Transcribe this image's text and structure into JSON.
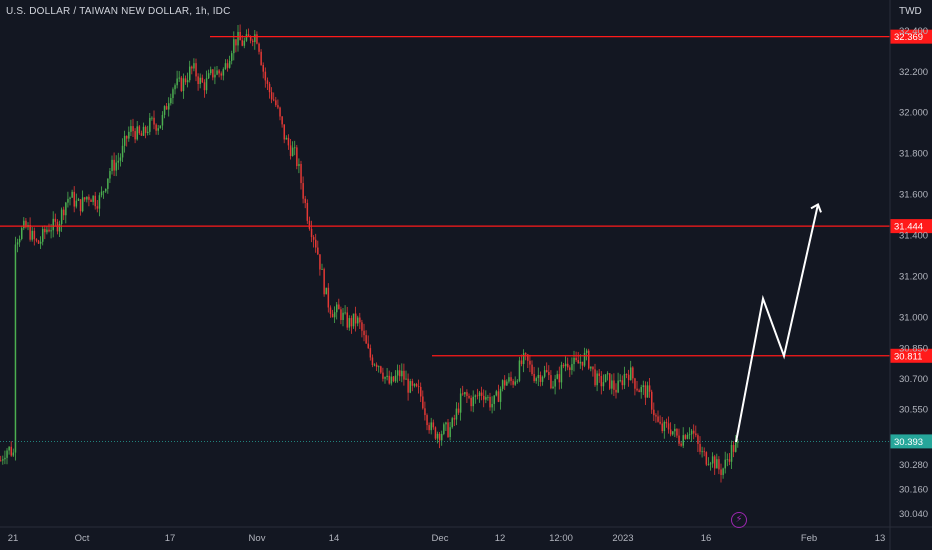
{
  "header": {
    "title": "U.S. DOLLAR / TAIWAN NEW DOLLAR, 1h, IDC",
    "currency": "TWD",
    "lightning_icon": "lightning-icon"
  },
  "colors": {
    "background": "#131722",
    "up": "#4caf50",
    "down": "#e53935",
    "level_line": "#ff1a1a",
    "last_price_label": "#26a69a",
    "arrow": "#ffffff",
    "axis_text": "#b2b5be"
  },
  "chart_data": {
    "type": "candlestick",
    "title": "U.S. DOLLAR / TAIWAN NEW DOLLAR, 1h, IDC",
    "ylim": [
      29.98,
      32.46
    ],
    "y_ticks": [
      "32.400",
      "32.200",
      "32.000",
      "31.800",
      "31.600",
      "31.400",
      "31.200",
      "31.000",
      "30.850",
      "30.700",
      "30.550",
      "30.280",
      "30.160",
      "30.040"
    ],
    "x_ticks": [
      "21",
      "Oct",
      "17",
      "Nov",
      "14",
      "Dec",
      "12",
      "12:00",
      "2023",
      "16",
      "Feb",
      "13"
    ],
    "price_path": [
      [
        "21",
        31.36
      ],
      [
        "Oct",
        31.55
      ],
      [
        "17",
        32.08
      ],
      [
        "Nov",
        32.36
      ],
      [
        "14",
        31.03
      ],
      [
        "Dec",
        30.46
      ],
      [
        "12",
        30.68
      ],
      [
        "12:00",
        30.76
      ],
      [
        "2023",
        30.7
      ],
      [
        "16",
        30.3
      ]
    ],
    "horizontal_levels": [
      {
        "value": 32.369,
        "label": "32.369"
      },
      {
        "value": 31.444,
        "label": "31.444"
      },
      {
        "value": 30.811,
        "label": "30.811"
      }
    ],
    "last_price": {
      "value": 30.393,
      "label": "30.393"
    },
    "projection_path": [
      [
        "16",
        30.39
      ],
      [
        "Feb",
        30.81
      ],
      [
        "13",
        31.55
      ]
    ]
  }
}
